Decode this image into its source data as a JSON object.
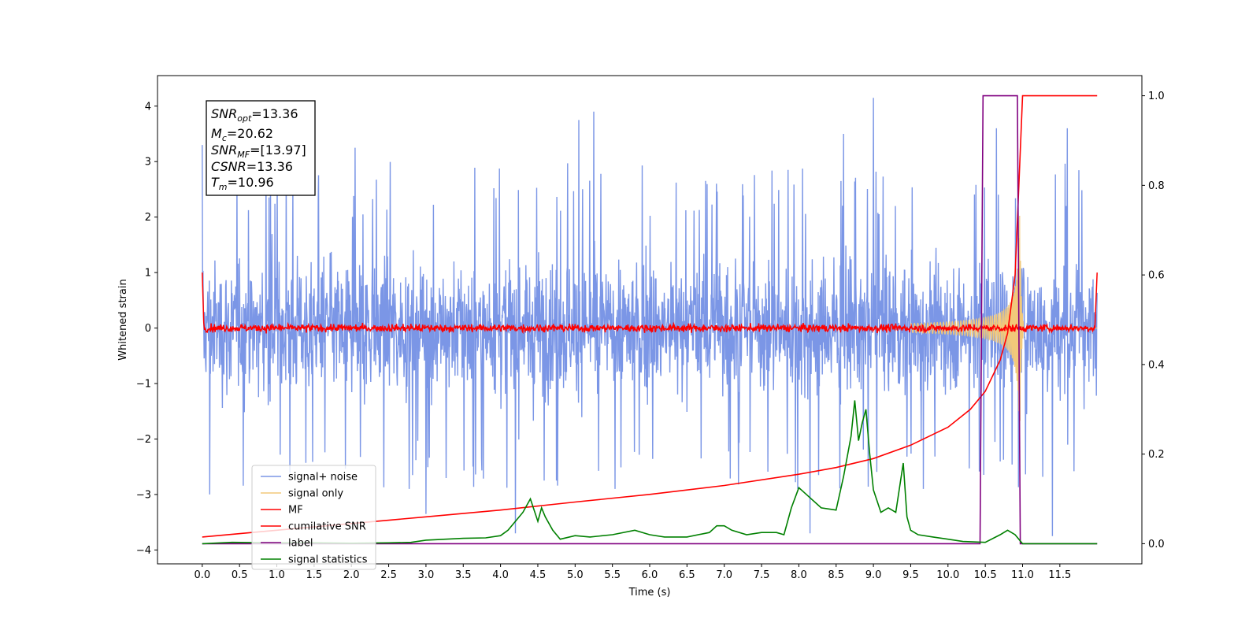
{
  "chart_data": {
    "type": "line",
    "xlabel": "Time (s)",
    "ylabel_left": "Whitened strain",
    "ylabel_right": "",
    "xlim": [
      -0.6,
      12.6
    ],
    "ylim_left": [
      -4.25,
      4.55
    ],
    "ylim_right": [
      -0.045,
      1.045
    ],
    "x_ticks": [
      "0.0",
      "0.5",
      "1.0",
      "1.5",
      "2.0",
      "2.5",
      "3.0",
      "3.5",
      "4.0",
      "4.5",
      "5.0",
      "5.5",
      "6.0",
      "6.5",
      "7.0",
      "7.5",
      "8.0",
      "8.5",
      "9.0",
      "9.5",
      "10.0",
      "10.5",
      "11.0",
      "11.5"
    ],
    "y_ticks_left": [
      "4",
      "3",
      "2",
      "1",
      "0",
      "−1",
      "−2",
      "−3",
      "−4"
    ],
    "y_ticks_right": [
      "1.0",
      "0.8",
      "0.6",
      "0.4",
      "0.2",
      "0.0"
    ],
    "grid": false,
    "legend_location": "lower-left",
    "info_box": {
      "snr_opt": {
        "sym": "SNR",
        "sub": "opt",
        "value": "=13.36"
      },
      "mc": {
        "sym": "M",
        "sub": "c",
        "value": "=20.62"
      },
      "snr_mf": {
        "sym": "SNR",
        "sub": "MF",
        "value": "=[13.97]"
      },
      "csnr": {
        "sym": "CSNR",
        "sub": "",
        "value": "=13.36"
      },
      "tm": {
        "sym": "T",
        "sub": "m",
        "value": "=10.96"
      }
    },
    "series": [
      {
        "name": "signal+ noise",
        "axis": "left",
        "color": "#7b96e6",
        "style": "dense noise",
        "x_range": [
          0.0,
          12.0
        ],
        "typical_range": [
          -1.9,
          2.1
        ],
        "peak_values": [
          [
            0.0,
            3.3
          ],
          [
            2.05,
            3.25
          ],
          [
            3.0,
            3.3
          ],
          [
            5.05,
            3.75
          ],
          [
            5.25,
            3.9
          ],
          [
            8.6,
            3.5
          ],
          [
            9.0,
            4.15
          ],
          [
            10.65,
            3.6
          ],
          [
            11.6,
            3.6
          ]
        ],
        "trough_values": [
          [
            0.1,
            -3.0
          ],
          [
            3.0,
            -3.35
          ],
          [
            4.2,
            -3.7
          ],
          [
            8.15,
            -3.7
          ],
          [
            11.4,
            -3.75
          ]
        ]
      },
      {
        "name": "signal only",
        "axis": "left",
        "color": "#f2c97a",
        "style": "chirp",
        "chirp_start": 9.5,
        "merger_time": 10.96,
        "peak_amplitude": 2.55
      },
      {
        "name": "MF",
        "axis": "left",
        "color": "#ff0000",
        "style": "noisy flat",
        "mean": 0.0,
        "amplitude": 0.08,
        "start_value": 1.0,
        "end_value": 1.0
      },
      {
        "name": "cumilative SNR",
        "axis": "right",
        "color": "#ff0000",
        "x": [
          0.0,
          1.0,
          2.0,
          3.0,
          4.0,
          5.0,
          6.0,
          7.0,
          8.0,
          8.5,
          9.0,
          9.5,
          10.0,
          10.3,
          10.5,
          10.7,
          10.8,
          10.9,
          10.95,
          11.0,
          12.0
        ],
        "y": [
          0.015,
          0.03,
          0.045,
          0.06,
          0.075,
          0.093,
          0.11,
          0.13,
          0.155,
          0.17,
          0.19,
          0.22,
          0.26,
          0.3,
          0.34,
          0.41,
          0.47,
          0.6,
          0.8,
          1.0,
          1.0
        ]
      },
      {
        "name": "label",
        "axis": "right",
        "color": "#800080",
        "x": [
          0.0,
          10.43,
          10.47,
          10.93,
          10.97,
          12.0
        ],
        "y": [
          0.0,
          0.0,
          1.0,
          1.0,
          0.0,
          0.0
        ]
      },
      {
        "name": "signal statistics",
        "axis": "right",
        "color": "#008000",
        "x": [
          0.0,
          0.4,
          1.0,
          1.5,
          2.0,
          2.5,
          2.8,
          3.0,
          3.5,
          3.8,
          4.0,
          4.1,
          4.2,
          4.3,
          4.4,
          4.5,
          4.55,
          4.6,
          4.7,
          4.8,
          5.0,
          5.2,
          5.5,
          5.8,
          6.0,
          6.2,
          6.5,
          6.8,
          6.9,
          7.0,
          7.1,
          7.3,
          7.5,
          7.7,
          7.8,
          7.9,
          8.0,
          8.1,
          8.3,
          8.5,
          8.6,
          8.7,
          8.75,
          8.8,
          8.85,
          8.9,
          8.95,
          9.0,
          9.1,
          9.2,
          9.3,
          9.4,
          9.45,
          9.5,
          9.6,
          9.8,
          10.0,
          10.2,
          10.5,
          10.7,
          10.8,
          10.9,
          11.0,
          12.0
        ],
        "y": [
          0.0,
          0.003,
          0.002,
          0.002,
          0.001,
          0.002,
          0.003,
          0.008,
          0.012,
          0.013,
          0.018,
          0.03,
          0.05,
          0.07,
          0.1,
          0.05,
          0.08,
          0.06,
          0.03,
          0.01,
          0.018,
          0.015,
          0.02,
          0.03,
          0.02,
          0.015,
          0.015,
          0.025,
          0.04,
          0.04,
          0.03,
          0.02,
          0.025,
          0.025,
          0.02,
          0.08,
          0.125,
          0.11,
          0.08,
          0.075,
          0.15,
          0.24,
          0.32,
          0.23,
          0.27,
          0.3,
          0.2,
          0.12,
          0.07,
          0.08,
          0.07,
          0.18,
          0.06,
          0.03,
          0.02,
          0.015,
          0.01,
          0.005,
          0.003,
          0.02,
          0.03,
          0.02,
          0.0,
          0.0
        ]
      }
    ]
  }
}
